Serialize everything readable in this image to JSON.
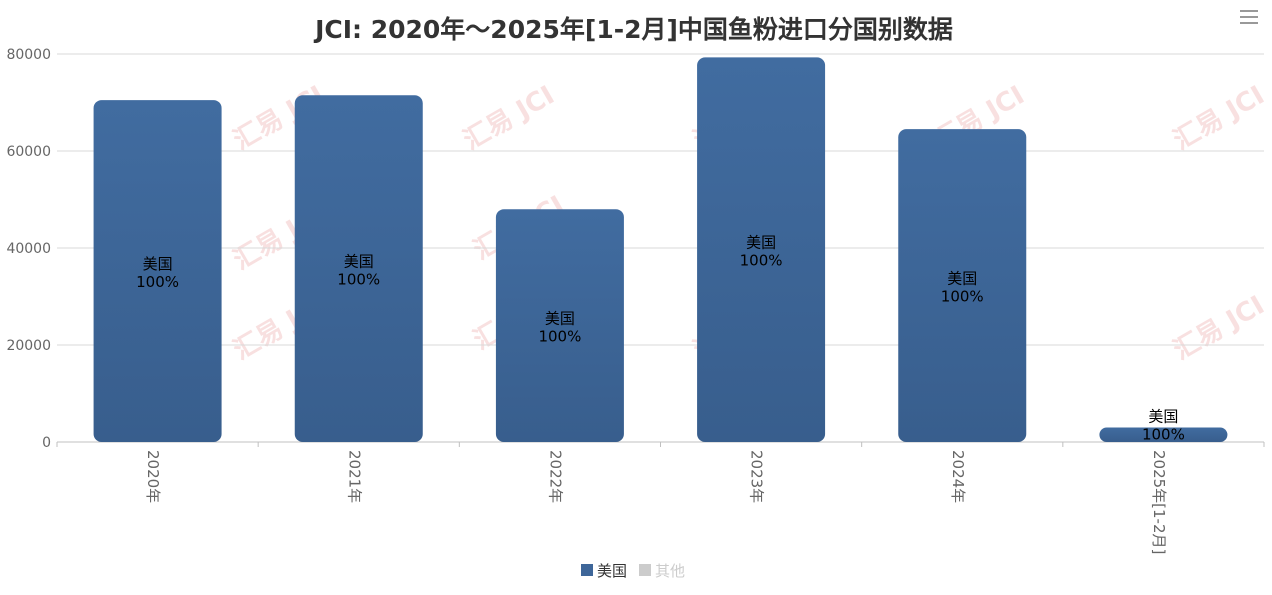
{
  "menu": {
    "icon": "hamburger-menu-icon"
  },
  "watermark": {
    "text": "汇易 JCI"
  },
  "chart_data": {
    "type": "bar",
    "title": "JCI: 2020年～2025年[1-2月]中国鱼粉进口分国别数据",
    "xlabel": "",
    "ylabel": "",
    "ylim": [
      0,
      80000
    ],
    "yticks": [
      0,
      20000,
      40000,
      60000,
      80000
    ],
    "grid": true,
    "legend_position": "bottom-center",
    "categories": [
      "2020年",
      "2021年",
      "2022年",
      "2023年",
      "2024年",
      "2025年[1-2月]"
    ],
    "series": [
      {
        "name": "美国",
        "color": "#3e6699",
        "values": [
          70500,
          71500,
          48000,
          79300,
          64500,
          3000
        ],
        "labels": [
          "100%",
          "100%",
          "100%",
          "100%",
          "100%",
          "100%"
        ]
      },
      {
        "name": "其他",
        "color": "#cccccc",
        "values": [
          0,
          0,
          0,
          0,
          0,
          0
        ]
      }
    ]
  }
}
